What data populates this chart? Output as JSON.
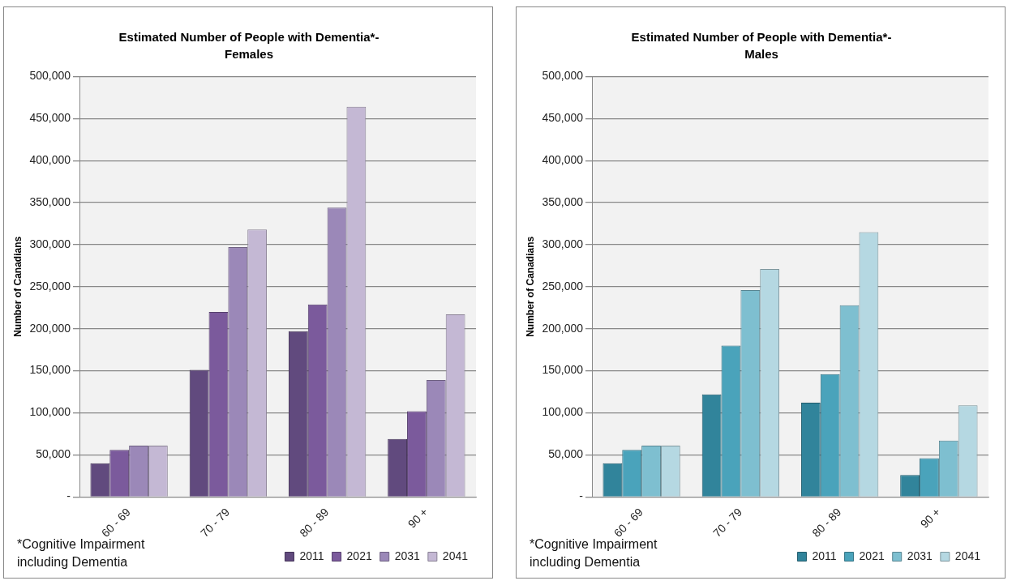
{
  "chart_data": [
    {
      "type": "bar",
      "title": "Estimated Number of People with Dementia*- Females",
      "ylabel": "Number of Canadians",
      "categories": [
        "60 - 69",
        "70 - 79",
        "80 - 89",
        "90 +"
      ],
      "series": [
        {
          "name": "2011",
          "color": "#614a7e",
          "values": [
            40000,
            151000,
            197000,
            69000
          ]
        },
        {
          "name": "2021",
          "color": "#7b5a9c",
          "values": [
            56000,
            220000,
            229000,
            102000
          ]
        },
        {
          "name": "2031",
          "color": "#9b88b8",
          "values": [
            61000,
            297000,
            344000,
            139000
          ]
        },
        {
          "name": "2041",
          "color": "#c4b8d4",
          "values": [
            61000,
            318000,
            464000,
            217000
          ]
        }
      ],
      "ylim": [
        0,
        500000
      ],
      "yticks": [
        {
          "value": 0,
          "label": "-"
        },
        {
          "value": 50000,
          "label": "50,000"
        },
        {
          "value": 100000,
          "label": "100,000"
        },
        {
          "value": 150000,
          "label": "150,000"
        },
        {
          "value": 200000,
          "label": "200,000"
        },
        {
          "value": 250000,
          "label": "250,000"
        },
        {
          "value": 300000,
          "label": "300,000"
        },
        {
          "value": 350000,
          "label": "350,000"
        },
        {
          "value": 400000,
          "label": "400,000"
        },
        {
          "value": 450000,
          "label": "450,000"
        },
        {
          "value": 500000,
          "label": "500,000"
        }
      ],
      "grid": "y",
      "legend": "bottom",
      "annotations": [
        "*Cognitive Impairment including Dementia"
      ]
    },
    {
      "type": "bar",
      "title": "Estimated Number of People with Dementia*- Males",
      "ylabel": "Number of Canadians",
      "categories": [
        "60 - 69",
        "70 - 79",
        "80 - 89",
        "90 +"
      ],
      "series": [
        {
          "name": "2011",
          "color": "#31849b",
          "values": [
            40000,
            122000,
            112000,
            26000
          ]
        },
        {
          "name": "2021",
          "color": "#4aa3bb",
          "values": [
            56000,
            180000,
            146000,
            46000
          ]
        },
        {
          "name": "2031",
          "color": "#7ebfd0",
          "values": [
            61000,
            246000,
            228000,
            67000
          ]
        },
        {
          "name": "2041",
          "color": "#b5d8e2",
          "values": [
            61000,
            271000,
            315000,
            109000
          ]
        }
      ],
      "ylim": [
        0,
        500000
      ],
      "yticks": [
        {
          "value": 0,
          "label": "-"
        },
        {
          "value": 50000,
          "label": "50,000"
        },
        {
          "value": 100000,
          "label": "100,000"
        },
        {
          "value": 150000,
          "label": "150,000"
        },
        {
          "value": 200000,
          "label": "200,000"
        },
        {
          "value": 250000,
          "label": "250,000"
        },
        {
          "value": 300000,
          "label": "300,000"
        },
        {
          "value": 350000,
          "label": "350,000"
        },
        {
          "value": 400000,
          "label": "400,000"
        },
        {
          "value": 450000,
          "label": "450,000"
        },
        {
          "value": 500000,
          "label": "500,000"
        }
      ],
      "grid": "y",
      "legend": "bottom",
      "annotations": [
        "*Cognitive Impairment including Dementia"
      ]
    }
  ]
}
